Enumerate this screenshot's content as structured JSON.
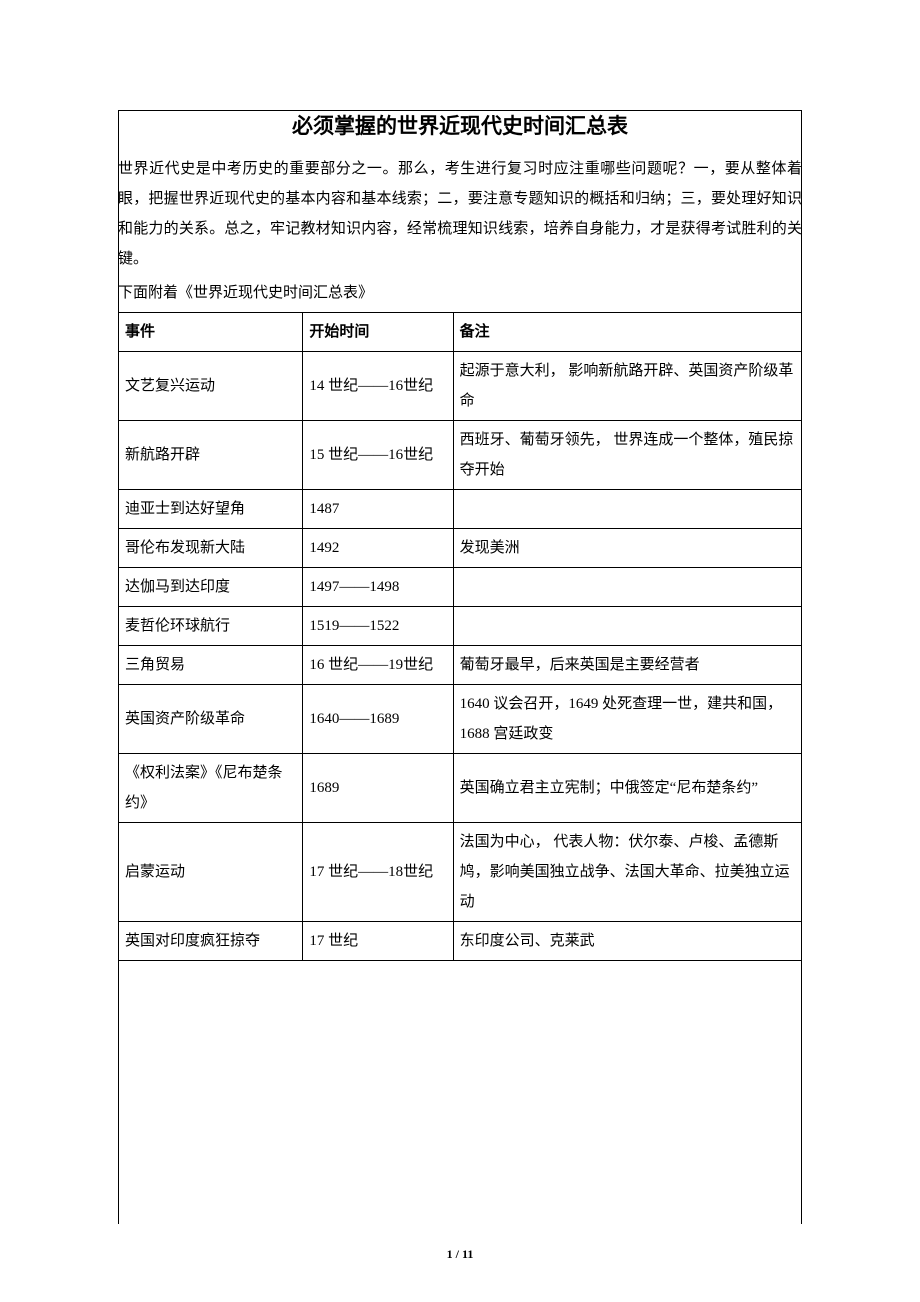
{
  "title": "必须掌握的世界近现代史时间汇总表",
  "intro": "世界近代史是中考历史的重要部分之一。那么，考生进行复习时应注重哪些问题呢？一，要从整体着眼，把握世界近现代史的基本内容和基本线索；二，要注意专题知识的概括和归纳；三，要处理好知识和能力的关系。总之，牢记教材知识内容，经常梳理知识线索，培养自身能力，才是获得考试胜利的关键。",
  "attach_line": "下面附着《世界近现代史时间汇总表》",
  "headers": {
    "event": "事件",
    "time": "开始时间",
    "note": "备注"
  },
  "rows": [
    {
      "event": "文艺复兴运动",
      "time": "14 世纪——16世纪",
      "note": "起源于意大利，\n影响新航路开辟、英国资产阶级革命"
    },
    {
      "event": "新航路开辟",
      "time": "15 世纪——16世纪",
      "note": "西班牙、葡萄牙领先，\n世界连成一个整体，殖民掠夺开始"
    },
    {
      "event": "迪亚士到达好望角",
      "time": "1487",
      "note": ""
    },
    {
      "event": "哥伦布发现新大陆",
      "time": "1492",
      "note": "发现美洲"
    },
    {
      "event": "达伽马到达印度",
      "time": "1497——1498",
      "note": ""
    },
    {
      "event": "麦哲伦环球航行",
      "time": "1519——1522",
      "note": ""
    },
    {
      "event": "三角贸易",
      "time": "16 世纪——19世纪",
      "note": "葡萄牙最早，后来英国是主要经营者"
    },
    {
      "event": "英国资产阶级革命",
      "time": "1640——1689",
      "note": "1640 议会召开，1649 处死查理一世，建共和国，\n1688 宫廷政变"
    },
    {
      "event": "《权利法案》《尼布楚条约》",
      "time": "1689",
      "note": "英国确立君主立宪制；中俄签定“尼布楚条约”"
    },
    {
      "event": "启蒙运动",
      "time": "17 世纪——18世纪",
      "note": "法国为中心，\n代表人物：伏尔泰、卢梭、孟德斯鸠，影响美国独立战争、法国大革命、拉美独立运动"
    },
    {
      "event": "英国对印度疯狂掠夺",
      "time": "17 世纪",
      "note": "东印度公司、克莱武"
    }
  ],
  "page_number": "1 / 11"
}
